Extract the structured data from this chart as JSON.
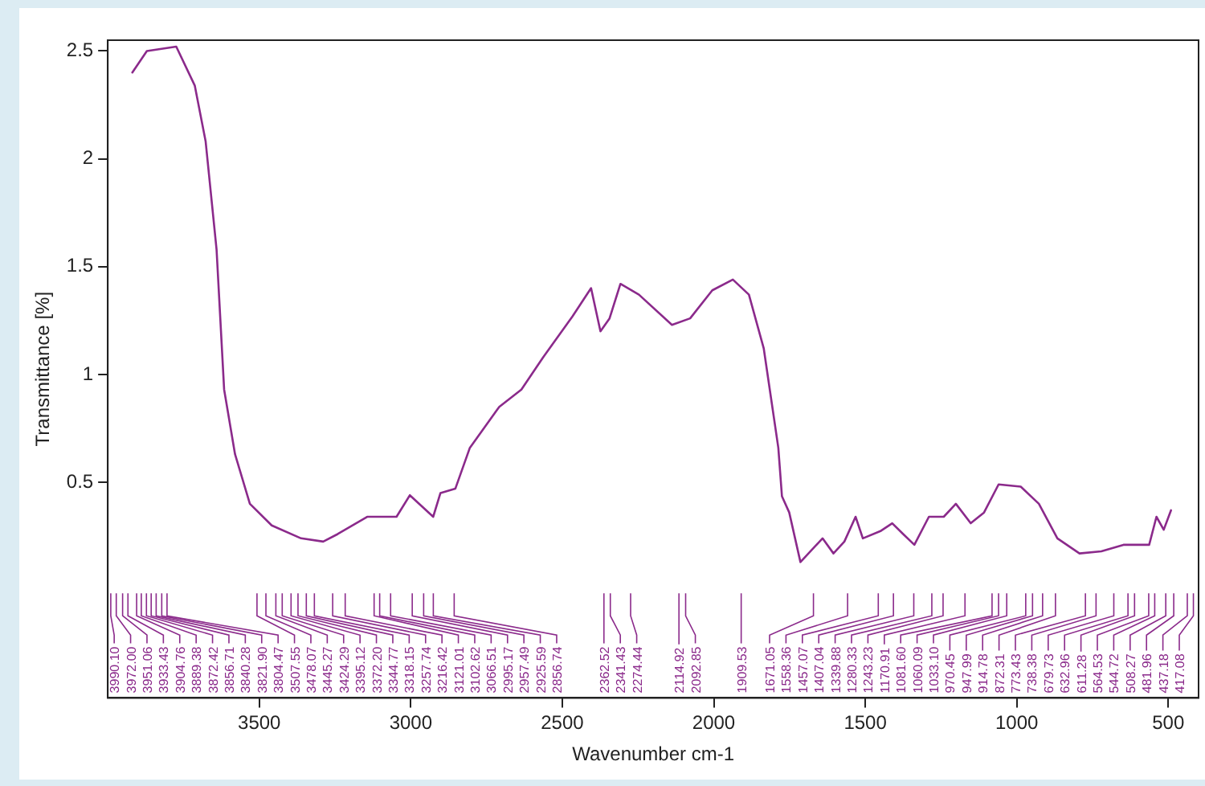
{
  "chart_data": {
    "type": "line",
    "xlabel": "Wavenumber cm-1",
    "ylabel": "Transmittance [%]",
    "xlim": [
      4000,
      400
    ],
    "xticks": [
      3500,
      3000,
      2500,
      2000,
      1500,
      1000,
      500
    ],
    "ylim": [
      -0.5,
      2.55
    ],
    "yticks": [
      0.5,
      1,
      1.5,
      2,
      2.5
    ],
    "grid": false,
    "legend": false,
    "marker": "none",
    "line_style": "solid",
    "x": [
      3919,
      3871,
      3774,
      3713,
      3677,
      3641,
      3616,
      3580,
      3531,
      3459,
      3362,
      3289,
      3241,
      3144,
      3047,
      3003,
      2926,
      2902,
      2853,
      2805,
      2708,
      2635,
      2563,
      2466,
      2405,
      2374,
      2344,
      2308,
      2247,
      2138,
      2078,
      2005,
      1937,
      1884,
      1835,
      1787,
      1775,
      1751,
      1714,
      1641,
      1605,
      1569,
      1532,
      1508,
      1448,
      1411,
      1375,
      1338,
      1290,
      1241,
      1201,
      1152,
      1108,
      1060,
      987,
      927,
      866,
      793,
      721,
      648,
      563,
      539,
      515,
      491
    ],
    "series": [
      {
        "color": "#8b2a8b",
        "values": [
          2.4,
          2.5,
          2.52,
          2.34,
          2.08,
          1.58,
          0.93,
          0.63,
          0.4,
          0.3,
          0.24,
          0.225,
          0.26,
          0.34,
          0.34,
          0.44,
          0.34,
          0.45,
          0.47,
          0.66,
          0.85,
          0.93,
          1.08,
          1.27,
          1.4,
          1.2,
          1.26,
          1.42,
          1.37,
          1.23,
          1.26,
          1.39,
          1.44,
          1.37,
          1.12,
          0.66,
          0.435,
          0.36,
          0.13,
          0.24,
          0.17,
          0.225,
          0.34,
          0.24,
          0.275,
          0.31,
          0.26,
          0.21,
          0.34,
          0.34,
          0.4,
          0.31,
          0.36,
          0.49,
          0.48,
          0.4,
          0.24,
          0.17,
          0.18,
          0.21,
          0.21,
          0.34,
          0.28,
          0.37
        ]
      }
    ],
    "annotations": [
      "3990.10",
      "3972.00",
      "3951.06",
      "3933.43",
      "3904.76",
      "3889.38",
      "3872.42",
      "3856.71",
      "3840.28",
      "3821.90",
      "3804.47",
      "3507.55",
      "3478.07",
      "3445.27",
      "3424.29",
      "3395.12",
      "3372.20",
      "3344.77",
      "3318.15",
      "3257.74",
      "3216.42",
      "3121.01",
      "3102.62",
      "3066.51",
      "2995.17",
      "2957.49",
      "2925.59",
      "2856.74",
      "2362.52",
      "2341.43",
      "2274.44",
      "2114.92",
      "2092.85",
      "1909.53",
      "1671.05",
      "1558.36",
      "1457.07",
      "1407.04",
      "1339.88",
      "1280.33",
      "1243.23",
      "1170.91",
      "1081.60",
      "1060.09",
      "1033.10",
      "970.45",
      "947.99",
      "914.78",
      "872.31",
      "773.43",
      "738.38",
      "679.73",
      "632.96",
      "611.28",
      "564.53",
      "544.72",
      "508.27",
      "481.96",
      "437.18",
      "417.08"
    ]
  }
}
